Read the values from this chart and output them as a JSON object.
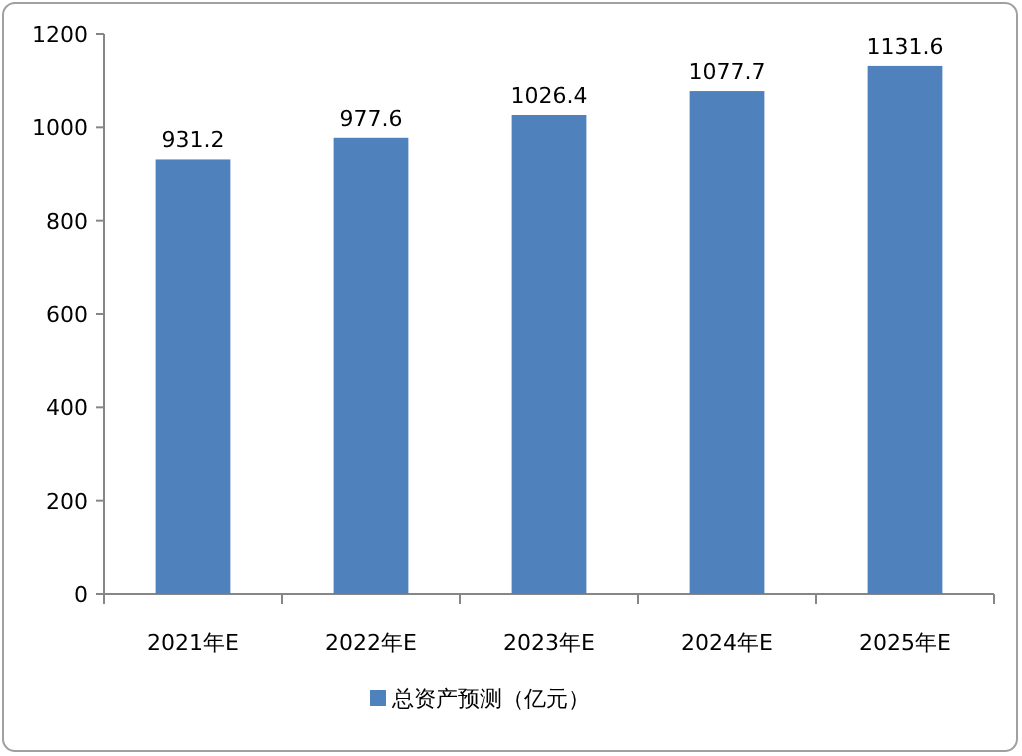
{
  "chart_data": {
    "type": "bar",
    "categories": [
      "2021年E",
      "2022年E",
      "2023年E",
      "2024年E",
      "2025年E"
    ],
    "series": [
      {
        "name": "总资产预测（亿元）",
        "color": "#4f81bd",
        "values": [
          931.2,
          977.6,
          1026.4,
          1077.7,
          1131.6
        ]
      }
    ],
    "ylim": [
      0,
      1200
    ],
    "yticks": [
      0,
      200,
      400,
      600,
      800,
      1000,
      1200
    ],
    "data_labels": true,
    "legend": "bottom"
  }
}
